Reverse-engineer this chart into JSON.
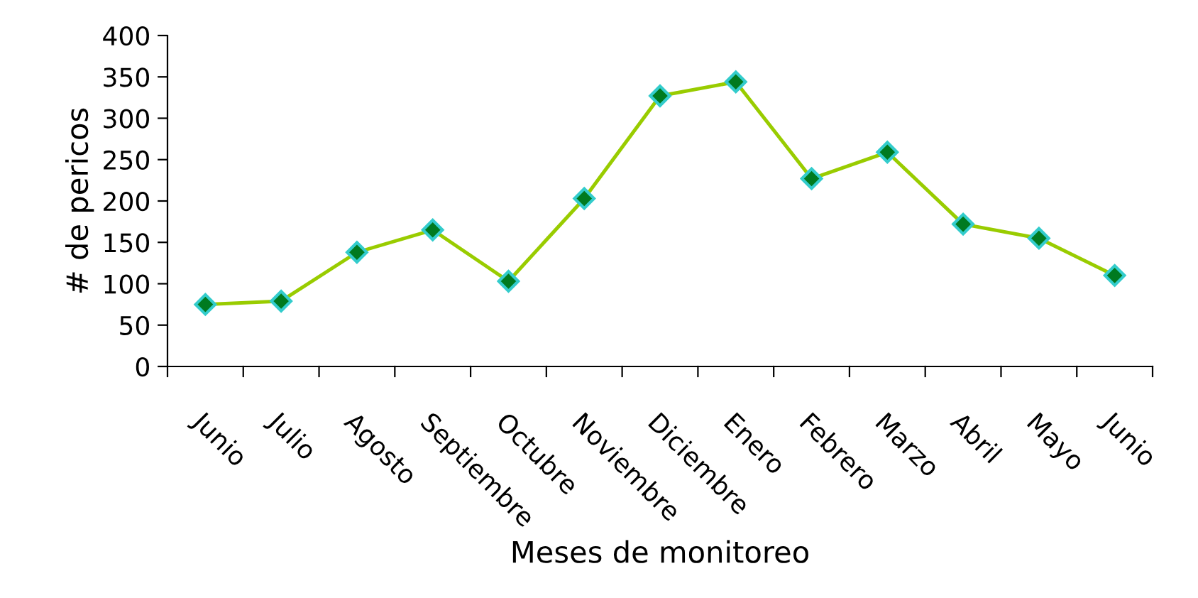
{
  "chart_data": {
    "type": "line",
    "xlabel": "Meses de monitoreo",
    "ylabel": "# de pericos",
    "categories": [
      "Junio",
      "Julio",
      "Agosto",
      "Septiembre",
      "Octubre",
      "Noviembre",
      "Diciembre",
      "Enero",
      "Febrero",
      "Marzo",
      "Abril",
      "Mayo",
      "Junio"
    ],
    "series": [
      {
        "color": "#99cc00",
        "values": [
          75,
          79,
          138,
          165,
          103,
          203,
          327,
          344,
          227,
          259,
          172,
          155,
          110
        ]
      }
    ],
    "ylim": [
      0,
      400
    ],
    "yticks": [
      0,
      50,
      100,
      150,
      200,
      250,
      300,
      350,
      400
    ],
    "grid": false,
    "legend": false,
    "marker": "diamond",
    "line_style": "solid"
  }
}
